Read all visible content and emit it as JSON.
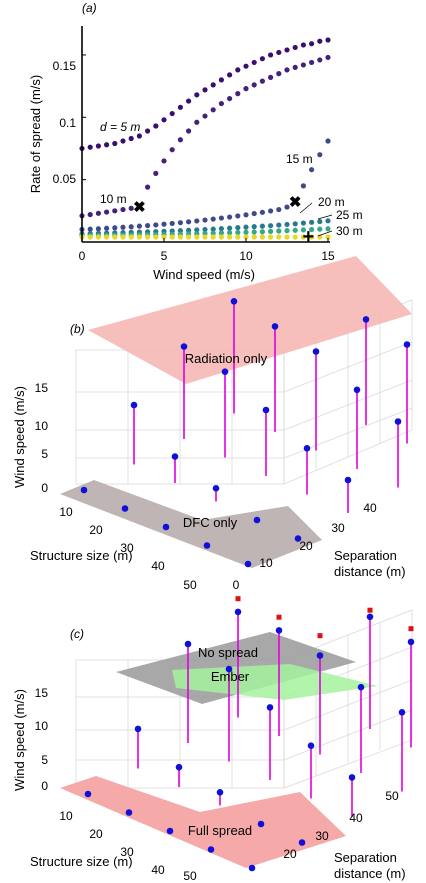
{
  "chart_data": [
    {
      "panel": "(a)",
      "type": "scatter",
      "xlabel": "Wind speed (m/s)",
      "ylabel": "Rate of spread (m/s)",
      "xlim": [
        0,
        15
      ],
      "ylim": [
        0,
        0.17
      ],
      "xticks": [
        "0",
        "5",
        "10",
        "15"
      ],
      "yticks": [
        "0.05",
        "0.1",
        "0.15"
      ],
      "x": [
        0,
        0.5,
        1,
        1.5,
        2,
        2.5,
        3,
        3.5,
        4,
        4.5,
        5,
        5.5,
        6,
        6.5,
        7,
        7.5,
        8,
        8.5,
        9,
        9.5,
        10,
        10.5,
        11,
        11.5,
        12,
        12.5,
        13,
        13.5,
        14,
        14.5,
        15
      ],
      "series": [
        {
          "name": "d = 5 m",
          "color": "#3b0f70",
          "values": [
            0.075,
            0.076,
            0.077,
            0.078,
            0.079,
            0.081,
            0.083,
            0.085,
            0.089,
            0.093,
            0.098,
            0.103,
            0.108,
            0.113,
            0.118,
            0.122,
            0.126,
            0.13,
            0.134,
            0.138,
            0.141,
            0.144,
            0.147,
            0.15,
            0.152,
            0.154,
            0.156,
            0.158,
            0.159,
            0.161,
            0.162
          ]
        },
        {
          "name": "10 m",
          "color": "#45217a",
          "values": [
            0.021,
            0.022,
            0.023,
            0.024,
            0.025,
            0.026,
            0.027,
            0.029,
            0.044,
            0.055,
            0.065,
            0.074,
            0.082,
            0.089,
            0.096,
            0.101,
            0.106,
            0.111,
            0.115,
            0.119,
            0.123,
            0.126,
            0.129,
            0.132,
            0.135,
            0.138,
            0.14,
            0.142,
            0.144,
            0.146,
            0.148
          ]
        },
        {
          "name": "15 m",
          "color": "#3e4a8a",
          "values": [
            0.01,
            0.0103,
            0.0106,
            0.011,
            0.0114,
            0.0118,
            0.0122,
            0.0127,
            0.0132,
            0.0137,
            0.0143,
            0.0149,
            0.0155,
            0.0162,
            0.0169,
            0.0176,
            0.0184,
            0.0192,
            0.02,
            0.0209,
            0.0218,
            0.0228,
            0.0238,
            0.0249,
            0.026,
            0.028,
            0.033,
            0.045,
            0.058,
            0.07,
            0.081
          ]
        },
        {
          "name": "20 m",
          "color": "#2a788e",
          "values": [
            0.0065,
            0.0067,
            0.0069,
            0.0071,
            0.0073,
            0.0075,
            0.0077,
            0.0079,
            0.0081,
            0.0083,
            0.0085,
            0.0088,
            0.0091,
            0.0094,
            0.0097,
            0.01,
            0.0103,
            0.0107,
            0.0111,
            0.0115,
            0.0119,
            0.0123,
            0.0127,
            0.0131,
            0.0136,
            0.0141,
            0.0146,
            0.0152,
            0.0158,
            0.0164,
            0.017
          ]
        },
        {
          "name": "25 m",
          "color": "#35a88a",
          "values": [
            0.005,
            0.0051,
            0.0052,
            0.0053,
            0.0054,
            0.0055,
            0.0056,
            0.0057,
            0.0058,
            0.0059,
            0.006,
            0.0061,
            0.0062,
            0.0064,
            0.0066,
            0.0068,
            0.007,
            0.0072,
            0.0074,
            0.0076,
            0.0078,
            0.008,
            0.0082,
            0.0085,
            0.0088,
            0.0091,
            0.0094,
            0.0097,
            0.01,
            0.0103,
            0.0106
          ]
        },
        {
          "name": "30 m",
          "color": "#e8d822",
          "values": [
            0.004,
            0.004,
            0.004,
            0.004,
            0.004,
            0.004,
            0.004,
            0.004,
            0.004,
            0.004,
            0.004,
            0.004,
            0.004,
            0.004,
            0.004,
            0.004,
            0.004,
            0.004,
            0.004,
            0.004,
            0.004,
            0.004,
            0.004,
            0.004,
            0.004,
            0.004,
            0.004,
            0.004,
            0.004,
            0.004,
            0.004
          ]
        }
      ],
      "annotations": [
        "d = 5 m",
        "10 m",
        "15 m",
        "20 m",
        "25 m",
        "30 m"
      ],
      "markers": [
        {
          "x": 3.5,
          "y": 0.029,
          "symbol": "✖",
          "color": "#e8141c"
        },
        {
          "x": 13,
          "y": 0.033,
          "symbol": "✖",
          "color": "#e8141c"
        },
        {
          "x": 13.8,
          "y": 0.004,
          "symbol": "+",
          "color": "#1aa89a"
        }
      ]
    },
    {
      "panel": "(b)",
      "type": "scatter",
      "xlabel": "Structure size (m)",
      "ylabel": "Wind speed (m/s)",
      "zlabel": "Separation distance (m)",
      "xticks": [
        "10",
        "20",
        "30",
        "40",
        "50"
      ],
      "yticks": [
        "0",
        "5",
        "10",
        "15"
      ],
      "zticks": [
        "0",
        "10",
        "20",
        "30",
        "40"
      ],
      "regions": [
        "Radiation only",
        "DFC only"
      ],
      "points": [
        {
          "s": 10,
          "d": 0,
          "w": 0
        },
        {
          "s": 10,
          "d": 10,
          "w": 9
        },
        {
          "s": 10,
          "d": 20,
          "w": 14
        },
        {
          "s": 10,
          "d": 30,
          "w": 17
        },
        {
          "s": 20,
          "d": 0,
          "w": 0
        },
        {
          "s": 20,
          "d": 10,
          "w": 4
        },
        {
          "s": 20,
          "d": 20,
          "w": 13
        },
        {
          "s": 20,
          "d": 30,
          "w": 16
        },
        {
          "s": 30,
          "d": 0,
          "w": 0
        },
        {
          "s": 30,
          "d": 10,
          "w": 2
        },
        {
          "s": 30,
          "d": 20,
          "w": 10
        },
        {
          "s": 30,
          "d": 30,
          "w": 15
        },
        {
          "s": 30,
          "d": 40,
          "w": 16
        },
        {
          "s": 40,
          "d": 0,
          "w": 0
        },
        {
          "s": 40,
          "d": 10,
          "w": 0
        },
        {
          "s": 40,
          "d": 20,
          "w": 7
        },
        {
          "s": 40,
          "d": 30,
          "w": 12
        },
        {
          "s": 40,
          "d": 40,
          "w": 15
        },
        {
          "s": 50,
          "d": 0,
          "w": 0
        },
        {
          "s": 50,
          "d": 10,
          "w": 0
        },
        {
          "s": 50,
          "d": 20,
          "w": 5
        },
        {
          "s": 50,
          "d": 30,
          "w": 10
        },
        {
          "s": 50,
          "d": 40,
          "w": 13
        }
      ]
    },
    {
      "panel": "(c)",
      "type": "scatter",
      "xlabel": "Structure size (m)",
      "ylabel": "Wind speed (m/s)",
      "zlabel": "Separation distance (m)",
      "xticks": [
        "10",
        "20",
        "30",
        "40",
        "50"
      ],
      "yticks": [
        "0",
        "5",
        "10",
        "15"
      ],
      "zticks": [
        "20",
        "30",
        "40",
        "50"
      ],
      "regions": [
        "No spread",
        "Ember",
        "Full spread"
      ],
      "points": [
        {
          "s": 10,
          "d": 0,
          "w": 0
        },
        {
          "s": 10,
          "d": 10,
          "w": 6
        },
        {
          "s": 10,
          "d": 20,
          "w": 15
        },
        {
          "s": 10,
          "d": 30,
          "w": 16
        },
        {
          "s": 20,
          "d": 0,
          "w": 0
        },
        {
          "s": 20,
          "d": 10,
          "w": 3
        },
        {
          "s": 20,
          "d": 20,
          "w": 14
        },
        {
          "s": 20,
          "d": 30,
          "w": 16
        },
        {
          "s": 30,
          "d": 0,
          "w": 0
        },
        {
          "s": 30,
          "d": 10,
          "w": 2
        },
        {
          "s": 30,
          "d": 20,
          "w": 11
        },
        {
          "s": 30,
          "d": 30,
          "w": 15
        },
        {
          "s": 30,
          "d": 40,
          "w": 17
        },
        {
          "s": 40,
          "d": 0,
          "w": 0
        },
        {
          "s": 40,
          "d": 10,
          "w": 0
        },
        {
          "s": 40,
          "d": 20,
          "w": 8
        },
        {
          "s": 40,
          "d": 30,
          "w": 13
        },
        {
          "s": 40,
          "d": 40,
          "w": 16
        },
        {
          "s": 50,
          "d": 0,
          "w": 0
        },
        {
          "s": 50,
          "d": 10,
          "w": 0
        },
        {
          "s": 50,
          "d": 20,
          "w": 6
        },
        {
          "s": 50,
          "d": 30,
          "w": 12
        },
        {
          "s": 50,
          "d": 40,
          "w": 15
        }
      ],
      "ember_points": [
        {
          "s": 10,
          "d": 30,
          "w": 18
        },
        {
          "s": 20,
          "d": 30,
          "w": 18
        },
        {
          "s": 30,
          "d": 30,
          "w": 18
        },
        {
          "s": 30,
          "d": 40,
          "w": 18
        },
        {
          "s": 40,
          "d": 40,
          "w": 18
        },
        {
          "s": 50,
          "d": 40,
          "w": 17
        }
      ]
    }
  ]
}
